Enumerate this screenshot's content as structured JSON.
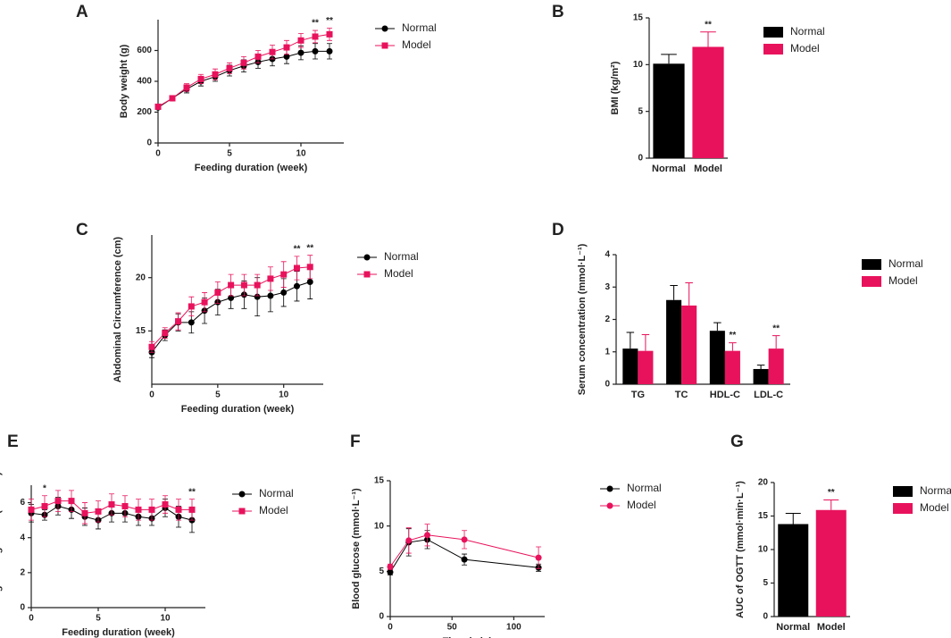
{
  "chart_data": [
    {
      "type": "line",
      "label": "A",
      "xlabel": "Feeding duration (week)",
      "ylabel": "Body weight (g)",
      "x": [
        0,
        1,
        2,
        3,
        4,
        5,
        6,
        7,
        8,
        9,
        10,
        11,
        12
      ],
      "xlim": [
        0,
        13
      ],
      "xticks": [
        0,
        5,
        10
      ],
      "ylim": [
        0,
        800
      ],
      "yticks": [
        0,
        200,
        400,
        600
      ],
      "series": [
        {
          "name": "Normal",
          "color": "#000000",
          "marker": "circle",
          "values": [
            230,
            290,
            350,
            400,
            430,
            470,
            500,
            525,
            545,
            560,
            585,
            595,
            595
          ],
          "errors": [
            10,
            15,
            25,
            30,
            30,
            35,
            40,
            40,
            45,
            45,
            45,
            50,
            50
          ]
        },
        {
          "name": "Model",
          "color": "#e8125c",
          "marker": "square",
          "values": [
            235,
            290,
            360,
            415,
            445,
            485,
            520,
            560,
            590,
            620,
            665,
            690,
            705
          ],
          "errors": [
            10,
            15,
            25,
            30,
            35,
            35,
            40,
            40,
            45,
            45,
            45,
            40,
            40
          ]
        }
      ],
      "annotations": [
        {
          "x": 11,
          "text": "**"
        },
        {
          "x": 12,
          "text": "**"
        }
      ]
    },
    {
      "type": "bar",
      "label": "B",
      "ylabel": "BMI (kg/m²)",
      "categories": [
        "Normal",
        "Model"
      ],
      "colors": [
        "#000000",
        "#e8125c"
      ],
      "values": [
        10.1,
        11.9
      ],
      "errors": [
        1.0,
        1.6
      ],
      "ylim": [
        0,
        15
      ],
      "yticks": [
        0,
        5,
        10,
        15
      ],
      "annotations": [
        {
          "x": "Model",
          "text": "**"
        }
      ]
    },
    {
      "type": "line",
      "label": "C",
      "xlabel": "Feeding duration (week)",
      "ylabel": "Abdominal Circumference (cm)",
      "x": [
        0,
        1,
        2,
        3,
        4,
        5,
        6,
        7,
        8,
        9,
        10,
        11,
        12
      ],
      "xlim": [
        0,
        13
      ],
      "xticks": [
        0,
        5,
        10
      ],
      "ylim": [
        10,
        24
      ],
      "yticks": [
        15,
        20
      ],
      "series": [
        {
          "name": "Normal",
          "color": "#000000",
          "marker": "circle",
          "values": [
            13.0,
            14.6,
            15.8,
            15.8,
            16.9,
            17.7,
            18.1,
            18.4,
            18.2,
            18.3,
            18.6,
            19.2,
            19.6
          ],
          "errors": [
            0.5,
            0.5,
            0.8,
            1.0,
            1.2,
            1.2,
            1.0,
            1.3,
            1.8,
            1.5,
            1.3,
            1.4,
            1.6
          ]
        },
        {
          "name": "Model",
          "color": "#e8125c",
          "marker": "square",
          "values": [
            13.5,
            14.8,
            15.9,
            17.3,
            17.7,
            18.6,
            19.3,
            19.3,
            19.3,
            19.9,
            20.3,
            20.9,
            21.0
          ],
          "errors": [
            0.5,
            0.5,
            0.8,
            0.9,
            0.9,
            1.0,
            1.0,
            1.0,
            1.0,
            1.1,
            1.2,
            1.1,
            1.1
          ]
        }
      ],
      "annotations": [
        {
          "x": 11,
          "text": "**"
        },
        {
          "x": 12,
          "text": "**"
        }
      ]
    },
    {
      "type": "groupedbar",
      "label": "D",
      "ylabel": "Serum concentration (mmol·L⁻¹)",
      "categories": [
        "TG",
        "TC",
        "HDL-C",
        "LDL-C"
      ],
      "ylim": [
        0,
        4
      ],
      "yticks": [
        0,
        1,
        2,
        3,
        4
      ],
      "series": [
        {
          "name": "Normal",
          "color": "#000000",
          "values": [
            1.1,
            2.6,
            1.65,
            0.47
          ],
          "errors": [
            0.5,
            0.45,
            0.25,
            0.12
          ]
        },
        {
          "name": "Model",
          "color": "#e8125c",
          "values": [
            1.03,
            2.43,
            1.03,
            1.1
          ],
          "errors": [
            0.5,
            0.7,
            0.25,
            0.4
          ]
        }
      ],
      "annotations": [
        {
          "x": "HDL-C",
          "series": "Model",
          "text": "**"
        },
        {
          "x": "LDL-C",
          "series": "Model",
          "text": "**"
        }
      ]
    },
    {
      "type": "line",
      "label": "E",
      "xlabel": "Feeding duration (week)",
      "ylabel": "Fasting blood glucose (mmol/L)",
      "x": [
        0,
        1,
        2,
        3,
        4,
        5,
        6,
        7,
        8,
        9,
        10,
        11,
        12
      ],
      "xlim": [
        0,
        13
      ],
      "xticks": [
        0,
        5,
        10
      ],
      "ylim": [
        0,
        7
      ],
      "yticks": [
        0,
        2,
        4,
        6
      ],
      "series": [
        {
          "name": "Normal",
          "color": "#000000",
          "marker": "circle",
          "values": [
            5.4,
            5.3,
            5.8,
            5.6,
            5.2,
            5.0,
            5.4,
            5.4,
            5.2,
            5.1,
            5.7,
            5.2,
            5.0
          ],
          "errors": [
            0.5,
            0.3,
            0.5,
            0.5,
            0.5,
            0.5,
            0.5,
            0.5,
            0.5,
            0.4,
            0.5,
            0.6,
            0.7
          ]
        },
        {
          "name": "Model",
          "color": "#e8125c",
          "marker": "square",
          "values": [
            5.6,
            5.8,
            6.1,
            6.1,
            5.4,
            5.5,
            5.9,
            5.8,
            5.6,
            5.6,
            5.9,
            5.6,
            5.6
          ],
          "errors": [
            0.6,
            0.6,
            0.6,
            0.6,
            0.6,
            0.6,
            0.6,
            0.6,
            0.6,
            0.6,
            0.5,
            0.6,
            0.6
          ]
        }
      ],
      "annotations": [
        {
          "x": 1,
          "text": "*"
        },
        {
          "x": 12,
          "text": "**"
        }
      ]
    },
    {
      "type": "line",
      "label": "F",
      "xlabel": "Time (min)",
      "ylabel": "Blood glucose (mmol·L⁻¹)",
      "x": [
        0,
        15,
        30,
        60,
        120
      ],
      "xlim": [
        0,
        125
      ],
      "xticks": [
        0,
        50,
        100
      ],
      "ylim": [
        0,
        15
      ],
      "yticks": [
        0,
        5,
        10,
        15
      ],
      "series": [
        {
          "name": "Normal",
          "color": "#000000",
          "marker": "circle",
          "values": [
            4.9,
            8.2,
            8.5,
            6.3,
            5.4
          ],
          "errors": [
            0.3,
            1.5,
            1.0,
            0.6,
            0.4
          ]
        },
        {
          "name": "Model",
          "color": "#e8125c",
          "marker": "circle",
          "values": [
            5.5,
            8.4,
            9.0,
            8.5,
            6.5
          ],
          "errors": [
            0.3,
            1.4,
            1.2,
            1.0,
            1.2
          ]
        }
      ]
    },
    {
      "type": "bar",
      "label": "G",
      "ylabel": "AUC of OGTT (mmol·min·L⁻¹)",
      "categories": [
        "Normal",
        "Model"
      ],
      "colors": [
        "#000000",
        "#e8125c"
      ],
      "values": [
        13.8,
        15.9
      ],
      "errors": [
        1.6,
        1.5
      ],
      "ylim": [
        0,
        20
      ],
      "yticks": [
        0,
        5,
        10,
        15,
        20
      ],
      "annotations": [
        {
          "x": "Model",
          "text": "**"
        }
      ]
    }
  ]
}
